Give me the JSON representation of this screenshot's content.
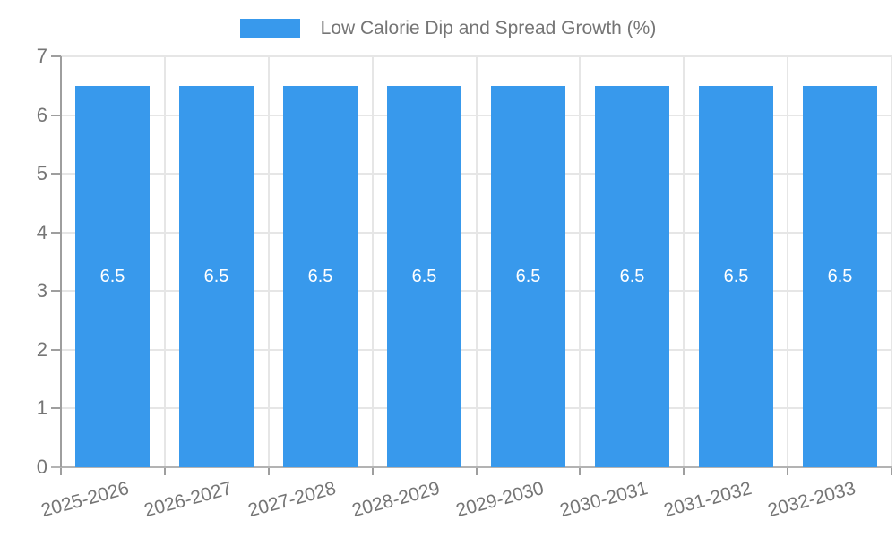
{
  "chart_data": {
    "type": "bar",
    "title": "Low Calorie Dip and Spread Growth (%)",
    "categories": [
      "2025-2026",
      "2026-2027",
      "2027-2028",
      "2028-2029",
      "2029-2030",
      "2030-2031",
      "2031-2032",
      "2032-2033"
    ],
    "values": [
      6.5,
      6.5,
      6.5,
      6.5,
      6.5,
      6.5,
      6.5,
      6.5
    ],
    "bar_labels": [
      "6.5",
      "6.5",
      "6.5",
      "6.5",
      "6.5",
      "6.5",
      "6.5",
      "6.5"
    ],
    "xlabel": "",
    "ylabel": "",
    "ylim": [
      0,
      7
    ],
    "yticks": [
      0,
      1,
      2,
      3,
      4,
      5,
      6,
      7
    ],
    "grid": true,
    "legend_position": "top",
    "colors": {
      "bar": "#3899ec",
      "bar_label": "#ffffff",
      "axis_text": "#757575",
      "grid_line": "#e6e6e6",
      "zero_line": "#b3b3b3",
      "axis_line": "#9e9e9e",
      "background": "#ffffff"
    }
  }
}
